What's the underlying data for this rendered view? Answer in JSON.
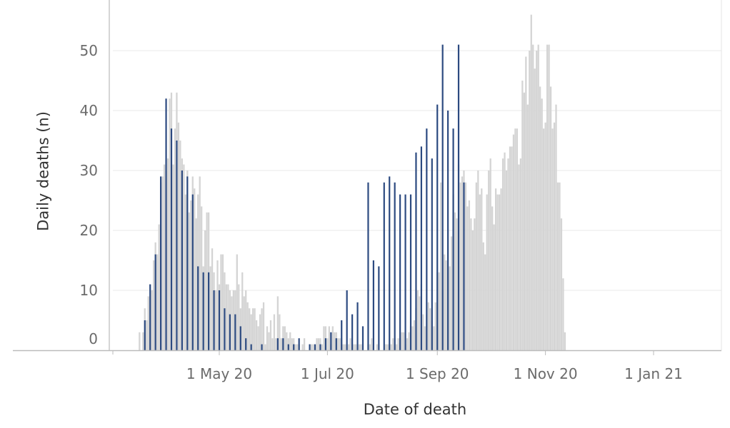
{
  "chart_data": {
    "type": "bar",
    "xlabel": "Date of death",
    "ylabel": "Daily deaths (n)",
    "ylim": [
      0,
      58
    ],
    "y_ticks": [
      0,
      10,
      20,
      30,
      40,
      50
    ],
    "x_ticks": [
      {
        "date": "2020-05-01",
        "label": "1 May 20"
      },
      {
        "date": "2020-07-01",
        "label": "1 Jul 20"
      },
      {
        "date": "2020-09-01",
        "label": "1 Sep 20"
      },
      {
        "date": "2020-11-01",
        "label": "1 Nov 20"
      },
      {
        "date": "2021-01-01",
        "label": "1 Jan 21"
      }
    ],
    "x_range": [
      "2020-03-02",
      "2021-02-28"
    ],
    "grid": "horizontal",
    "legend": "none",
    "colors": {
      "daily_bar": "#d4d4d4",
      "weekly_marker": "#2c4a80",
      "grid": "#eeeeee",
      "axis": "#bbbbbb"
    },
    "series": [
      {
        "start_date": "2020-03-17",
        "interval_days": 1,
        "values": [
          3,
          0,
          3,
          7,
          5,
          9,
          11,
          10,
          15,
          18,
          16,
          21,
          28,
          29,
          31,
          30,
          32,
          42,
          43,
          31,
          37,
          43,
          38,
          35,
          32,
          31,
          26,
          30,
          23,
          25,
          29,
          27,
          22,
          26,
          29,
          24,
          14,
          20,
          23,
          23,
          14,
          17,
          13,
          10,
          15,
          11,
          16,
          16,
          13,
          11,
          11,
          10,
          9,
          10,
          10,
          16,
          11,
          7,
          13,
          9,
          10,
          8,
          7,
          6,
          7,
          7,
          5,
          4,
          6,
          7,
          8,
          1,
          4,
          3,
          5,
          2,
          6,
          2,
          9,
          6,
          2,
          4,
          4,
          3,
          2,
          3,
          2,
          2,
          1,
          1,
          1,
          0,
          1,
          2,
          0,
          0,
          0,
          1,
          1,
          0,
          2,
          2,
          2,
          1,
          4,
          4,
          2,
          4,
          1,
          4,
          3,
          3,
          2,
          2,
          2,
          1,
          1,
          0,
          1,
          2,
          0,
          1,
          1,
          0,
          1,
          1,
          0,
          0,
          0,
          1,
          1,
          2,
          1,
          0,
          1,
          0,
          0,
          0,
          0,
          1,
          1,
          0,
          1,
          2,
          2,
          1,
          2,
          2,
          3,
          3,
          1,
          2,
          3,
          4,
          4,
          5,
          7,
          10,
          9,
          11,
          6,
          4,
          6,
          8,
          7,
          5,
          4,
          8,
          13,
          13,
          28,
          10,
          16,
          15,
          20,
          14,
          19,
          26,
          23,
          22,
          31,
          28,
          29,
          30,
          28,
          24,
          25,
          22,
          20,
          22,
          28,
          30,
          26,
          27,
          18,
          16,
          26,
          30,
          32,
          24,
          21,
          27,
          26,
          26,
          27,
          32,
          33,
          30,
          32,
          34,
          34,
          36,
          37,
          37,
          31,
          32,
          45,
          43,
          49,
          41,
          50,
          56,
          51,
          47,
          50,
          51,
          44,
          42,
          37,
          38,
          51,
          51,
          44,
          37,
          38,
          41,
          28,
          28,
          22,
          12,
          3
        ]
      }
    ],
    "highlight_series": {
      "name": "",
      "start_date": "2020-03-20",
      "interval_days": 3,
      "values": [
        5,
        11,
        16,
        29,
        42,
        37,
        35,
        30,
        29,
        26,
        14,
        13,
        13,
        10,
        10,
        7,
        6,
        6,
        4,
        2,
        1,
        0,
        1,
        0,
        0,
        2,
        2,
        1,
        1,
        2,
        0,
        1,
        1,
        1,
        2,
        3,
        2,
        5,
        10,
        6,
        8,
        4,
        28,
        15,
        14,
        28,
        29,
        28,
        26,
        26,
        26,
        33,
        34,
        37,
        32,
        41,
        51,
        40,
        37,
        51,
        28
      ]
    }
  }
}
